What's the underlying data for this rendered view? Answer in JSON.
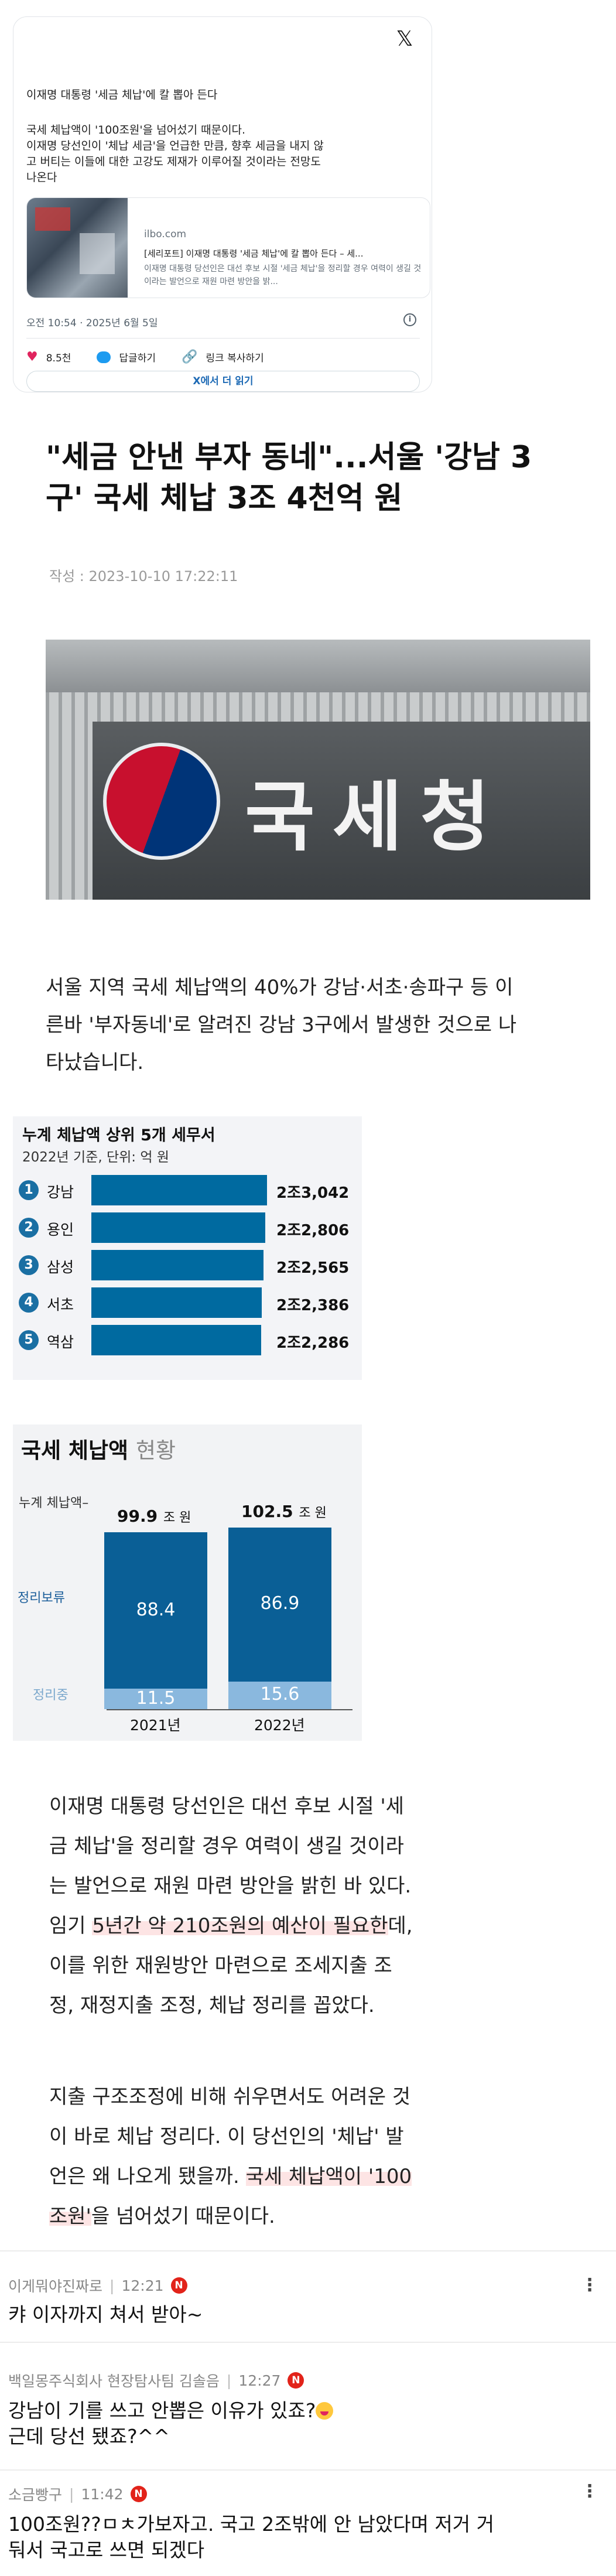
{
  "tweet": {
    "headline": "이재명 대통령 '세금 체납'에 칼 뽑아 든다",
    "body_lines": [
      "국세 체납액이 '100조원'을 넘어섰기 때문이다.",
      "이재명 당선인이 '체납 세금'을 언급한 만큼, 향후 세금을 내지 않",
      "고 버티는 이들에 대한 고강도 제재가 이루어질 것이라는 전망도",
      "나온다"
    ],
    "link": {
      "domain": "ilbo.com",
      "title": "[세리포트] 이재명 대통령 '세금 체납'에 칼 뽑아 든다 – 세...",
      "desc": "이재명 대통령 당선인은 대선 후보 시절 '세금 체납'을 정리할 경우 여력이 생길 것이라는 발언으로 재원 마련 방안을 밝..."
    },
    "meta": "오전 10:54 · 2025년 6월 5일",
    "info_glyph": "i",
    "likes": "8.5천",
    "reply_label": "답글하기",
    "copy_link_label": "링크 복사하기",
    "read_more": "X에서 더 읽기",
    "x_logo": "𝕏"
  },
  "article": {
    "title_lines": [
      "\"세금 안낸 부자 동네\"...서울 '강남 3",
      "구' 국세 체납 3조 4천억 원"
    ],
    "byline": "작성 : 2023-10-10 17:22:11",
    "photo_sign": "국세청",
    "para1_lines": [
      "서울 지역 국세 체납액의 40%가 강남·서초·송파구 등 이",
      "른바 '부자동네'로 알려진 강남 3구에서 발생한 것으로 나",
      "타났습니다."
    ],
    "para2": {
      "l1": "이재명 대통령 당선인은 대선 후보 시절 '세",
      "l2": "금 체납'을 정리할 경우 여력이 생길 것이라",
      "l3": "는 발언으로 재원 마련 방안을 밝힌 바 있다.",
      "l4_pre": "임기 ",
      "l4_hl": "5년간 약 210조원의 예산이 필요한",
      "l4_post": "데,",
      "l5": "이를 위한 재원방안 마련으로 조세지출 조",
      "l6": "정, 재정지출 조정, 체납 정리를 꼽았다."
    },
    "para3": {
      "l1": "지출 구조조정에 비해 쉬우면서도 어려운 것",
      "l2": "이 바로 체납 정리다. 이 당선인의 '체납' 발",
      "l3_pre": "언은 왜 나오게 됐을까. ",
      "l3_hl": "국세 체납액이 '100",
      "l4_hl": "조원'",
      "l4_post": "을 넘어섰기 때문이다."
    }
  },
  "chart_data": [
    {
      "type": "bar",
      "title": "누계 체납액 상위 5개 세무서",
      "subtitle": "2022년 기준, 단위: 억 원",
      "ranks": [
        "1",
        "2",
        "3",
        "4",
        "5"
      ],
      "categories": [
        "강남",
        "용인",
        "삼성",
        "서초",
        "역삼"
      ],
      "values": [
        23042,
        22806,
        22565,
        22386,
        22286
      ],
      "value_labels": [
        "2조3,042",
        "2조2,806",
        "2조2,565",
        "2조2,386",
        "2조2,286"
      ],
      "color": "#006aa0"
    },
    {
      "type": "bar",
      "title": "국세 체납액",
      "title_suffix": "현황",
      "categories": [
        "2021년",
        "2022년"
      ],
      "total_label": "누계 체납액",
      "totals": [
        99.9,
        102.5
      ],
      "total_unit": "조 원",
      "series": [
        {
          "name": "정리보류",
          "values": [
            88.4,
            86.9
          ],
          "color": "#0a5f96"
        },
        {
          "name": "정리중",
          "values": [
            11.5,
            15.6
          ],
          "color": "#8ab8de"
        }
      ]
    }
  ],
  "comments": [
    {
      "user": "이게뭐야진짜로",
      "time": "12:21",
      "text": "캬 이자까지 쳐서 받아~"
    },
    {
      "user": "백일몽주식회사 현장탐사팀 김솔음",
      "time": "12:27",
      "text1": "강남이 기를 쓰고 안뽑은 이유가 있죠?",
      "text2": "근데 당선 됐죠?^^"
    },
    {
      "user": "소금빵구",
      "time": "11:42",
      "text1": "100조원??ㅁㅊ가보자고. 국고 2조밖에 안 남았다며 저거 거",
      "text2": "둬서 국고로 쓰면 되겠다"
    }
  ],
  "ui": {
    "new_badge": "N",
    "more_glyph": "⋮",
    "sep": "|",
    "heart": "♥",
    "link_glyph": "🔗"
  }
}
